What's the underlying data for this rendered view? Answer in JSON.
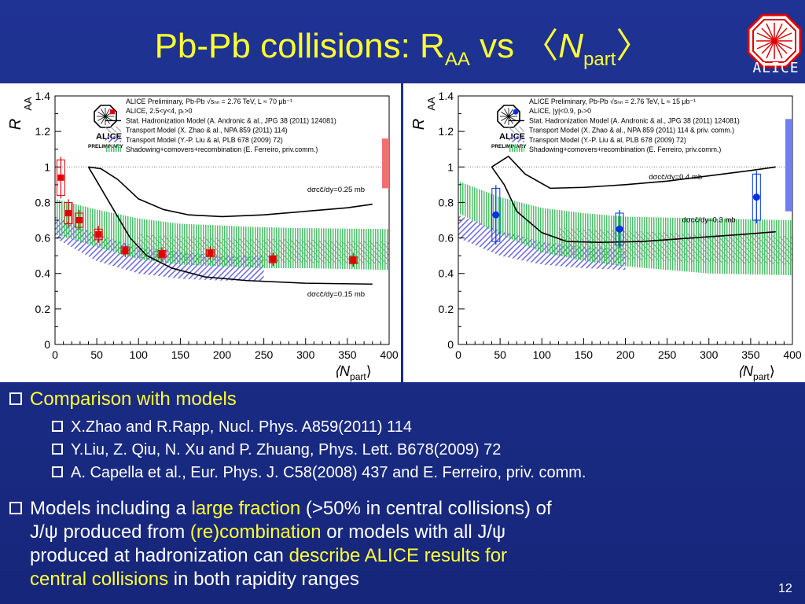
{
  "slide": {
    "title_main": "Pb-Pb collisions: R",
    "title_sub": "AA",
    "title_vs": " vs ",
    "title_n": "N",
    "title_n_sub": "part",
    "logo_text": "ALICE",
    "page_number": "12",
    "colors": {
      "background": "#1f3394",
      "accent": "#ffff33"
    }
  },
  "bullets": {
    "main1": "Comparison with models",
    "refs": [
      "X.Zhao and R.Rapp, Nucl. Phys. A859(2011) 114",
      "Y.Liu, Z. Qiu, N. Xu and P. Zhuang, Phys. Lett. B678(2009) 72",
      "A. Capella et al., Eur. Phys. J. C58(2008) 437 and E. Ferreiro, priv. comm."
    ],
    "main2_parts": [
      "Models including a ",
      "large fraction",
      " (>50% in central collisions) of",
      "J/ψ produced from ",
      "(re)combination",
      " or models with all J/ψ",
      "produced at  hadronization can ",
      "describe ALICE results for",
      "central collisions",
      " in both rapidity ranges"
    ]
  },
  "chart_data": [
    {
      "type": "scatter",
      "xlabel": "⟨N",
      "xlabel_sub": "part",
      "xlabel_close": "⟩",
      "ylabel": "R",
      "ylabel_sub": "AA",
      "xlim": [
        0,
        400
      ],
      "ylim": [
        0,
        1.4
      ],
      "xticks": [
        "0",
        "50",
        "100",
        "150",
        "200",
        "250",
        "300",
        "350",
        "400"
      ],
      "yticks": [
        "0",
        "0.2",
        "0.4",
        "0.6",
        "0.8",
        "1",
        "1.2",
        "1.4"
      ],
      "logo_label": "PRELIMINARY",
      "legend": [
        "ALICE Preliminary, Pb-Pb √sₙₙ = 2.76 TeV, L ≈ 70 μb⁻¹",
        "ALICE, 2.5<y<4, pₜ>0",
        "Stat. Hadronization Model (A. Andronic & al., JPG 38 (2011) 124081)",
        "Transport Model (X. Zhao & al., NPA 859 (2011) 114)",
        "Transport Model (Y.-P. Liu & al, PLB 678 (2009) 72)",
        "Shadowing+comovers+recombination (E. Ferreiro, priv.comm.)"
      ],
      "annotations": [
        "dσcc̄/dy=0.25 mb",
        "dσcc̄/dy=0.15 mb"
      ],
      "marker_color": "#e00000",
      "points": [
        {
          "x": 7,
          "y": 0.94,
          "err": 0.1
        },
        {
          "x": 16,
          "y": 0.74,
          "err": 0.06
        },
        {
          "x": 29,
          "y": 0.7,
          "err": 0.04
        },
        {
          "x": 52,
          "y": 0.62,
          "err": 0.03
        },
        {
          "x": 84,
          "y": 0.53,
          "err": 0.02
        },
        {
          "x": 128,
          "y": 0.51,
          "err": 0.02
        },
        {
          "x": 186,
          "y": 0.515,
          "err": 0.02
        },
        {
          "x": 261,
          "y": 0.48,
          "err": 0.02
        },
        {
          "x": 357,
          "y": 0.475,
          "err": 0.02
        }
      ],
      "shm_upper": [
        [
          40,
          1.0
        ],
        [
          55,
          0.99
        ],
        [
          75,
          0.93
        ],
        [
          100,
          0.82
        ],
        [
          130,
          0.76
        ],
        [
          160,
          0.73
        ],
        [
          200,
          0.72
        ],
        [
          250,
          0.73
        ],
        [
          300,
          0.75
        ],
        [
          350,
          0.77
        ],
        [
          380,
          0.79
        ]
      ],
      "shm_lower": [
        [
          40,
          1.0
        ],
        [
          50,
          0.92
        ],
        [
          70,
          0.76
        ],
        [
          90,
          0.6
        ],
        [
          110,
          0.5
        ],
        [
          140,
          0.43
        ],
        [
          180,
          0.38
        ],
        [
          230,
          0.36
        ],
        [
          300,
          0.345
        ],
        [
          380,
          0.34
        ]
      ],
      "band_green_upper": [
        [
          0,
          0.82
        ],
        [
          50,
          0.76
        ],
        [
          100,
          0.71
        ],
        [
          150,
          0.68
        ],
        [
          200,
          0.67
        ],
        [
          250,
          0.66
        ],
        [
          300,
          0.655
        ],
        [
          400,
          0.65
        ]
      ],
      "band_green_lower": [
        [
          0,
          0.62
        ],
        [
          50,
          0.55
        ],
        [
          100,
          0.48
        ],
        [
          150,
          0.45
        ],
        [
          200,
          0.44
        ],
        [
          250,
          0.43
        ],
        [
          300,
          0.43
        ],
        [
          400,
          0.42
        ]
      ],
      "band_blue_upper": [
        [
          0,
          0.72
        ],
        [
          50,
          0.62
        ],
        [
          100,
          0.55
        ],
        [
          150,
          0.52
        ],
        [
          200,
          0.5
        ],
        [
          250,
          0.5
        ]
      ],
      "band_blue_lower": [
        [
          0,
          0.6
        ],
        [
          50,
          0.47
        ],
        [
          100,
          0.4
        ],
        [
          150,
          0.37
        ],
        [
          200,
          0.36
        ],
        [
          250,
          0.36
        ]
      ],
      "band_gray_upper": [
        [
          100,
          0.62
        ],
        [
          200,
          0.6
        ],
        [
          300,
          0.59
        ],
        [
          400,
          0.58
        ]
      ],
      "band_gray_lower": [
        [
          100,
          0.48
        ],
        [
          200,
          0.47
        ],
        [
          300,
          0.46
        ],
        [
          400,
          0.45
        ]
      ],
      "global_unc": {
        "y_low": 0.88,
        "y_high": 1.16,
        "color": "#f07070"
      }
    },
    {
      "type": "scatter",
      "xlabel": "⟨N",
      "xlabel_sub": "part",
      "xlabel_close": "⟩",
      "ylabel": "R",
      "ylabel_sub": "AA",
      "xlim": [
        0,
        400
      ],
      "ylim": [
        0,
        1.4
      ],
      "xticks": [
        "0",
        "50",
        "100",
        "150",
        "200",
        "250",
        "300",
        "350",
        "400"
      ],
      "yticks": [
        "0",
        "0.2",
        "0.4",
        "0.6",
        "0.8",
        "1",
        "1.2",
        "1.4"
      ],
      "logo_label": "PRELIMINARY",
      "legend": [
        "ALICE Preliminary, Pb-Pb √sₙₙ = 2.76 TeV, L ≈ 15 μb⁻¹",
        "ALICE, |y|<0.9, pₜ>0",
        "Stat. Hadronization Model (A. Andronic & al., JPG 38 (2011) 124081)",
        "Transport Model (X. Zhao & al., NPA 859 (2011) 114 & priv. comm.)",
        "Transport Model (Y.-P. Liu & al, PLB 678 (2009) 72)",
        "Shadowing+comovers+recombination (E. Ferreiro, priv.comm.)"
      ],
      "annotations": [
        "dσcc̄/dy=0.4 mb",
        "dσcc̄/dy=0.3 mb"
      ],
      "marker_color": "#0033dd",
      "points": [
        {
          "x": 45,
          "y": 0.73,
          "err": 0.15
        },
        {
          "x": 193,
          "y": 0.65,
          "err": 0.09
        },
        {
          "x": 357,
          "y": 0.83,
          "err": 0.13
        }
      ],
      "shm_upper": [
        [
          40,
          1.0
        ],
        [
          60,
          1.06
        ],
        [
          80,
          0.96
        ],
        [
          110,
          0.88
        ],
        [
          150,
          0.885
        ],
        [
          200,
          0.9
        ],
        [
          250,
          0.92
        ],
        [
          300,
          0.95
        ],
        [
          350,
          0.98
        ],
        [
          380,
          1.0
        ]
      ],
      "shm_lower": [
        [
          40,
          1.0
        ],
        [
          55,
          0.9
        ],
        [
          70,
          0.75
        ],
        [
          100,
          0.63
        ],
        [
          130,
          0.58
        ],
        [
          170,
          0.575
        ],
        [
          220,
          0.58
        ],
        [
          280,
          0.6
        ],
        [
          340,
          0.62
        ],
        [
          380,
          0.635
        ]
      ],
      "band_green_upper": [
        [
          0,
          0.92
        ],
        [
          50,
          0.83
        ],
        [
          100,
          0.77
        ],
        [
          150,
          0.74
        ],
        [
          200,
          0.72
        ],
        [
          250,
          0.715
        ],
        [
          300,
          0.71
        ],
        [
          400,
          0.7
        ]
      ],
      "band_green_lower": [
        [
          0,
          0.74
        ],
        [
          50,
          0.62
        ],
        [
          100,
          0.52
        ],
        [
          150,
          0.47
        ],
        [
          200,
          0.44
        ],
        [
          250,
          0.42
        ],
        [
          300,
          0.4
        ],
        [
          400,
          0.39
        ]
      ],
      "band_blue_upper": [
        [
          0,
          0.73
        ],
        [
          50,
          0.64
        ],
        [
          100,
          0.58
        ],
        [
          150,
          0.55
        ],
        [
          200,
          0.54
        ]
      ],
      "band_blue_lower": [
        [
          0,
          0.6
        ],
        [
          50,
          0.5
        ],
        [
          100,
          0.45
        ],
        [
          150,
          0.43
        ],
        [
          200,
          0.42
        ]
      ],
      "band_gray_upper": [
        [
          120,
          0.66
        ],
        [
          200,
          0.64
        ],
        [
          300,
          0.62
        ],
        [
          400,
          0.61
        ]
      ],
      "band_gray_lower": [
        [
          120,
          0.5
        ],
        [
          200,
          0.48
        ],
        [
          300,
          0.46
        ],
        [
          400,
          0.45
        ]
      ],
      "global_unc": {
        "y_low": 0.75,
        "y_high": 1.27,
        "color": "#6f7ff0"
      }
    }
  ]
}
